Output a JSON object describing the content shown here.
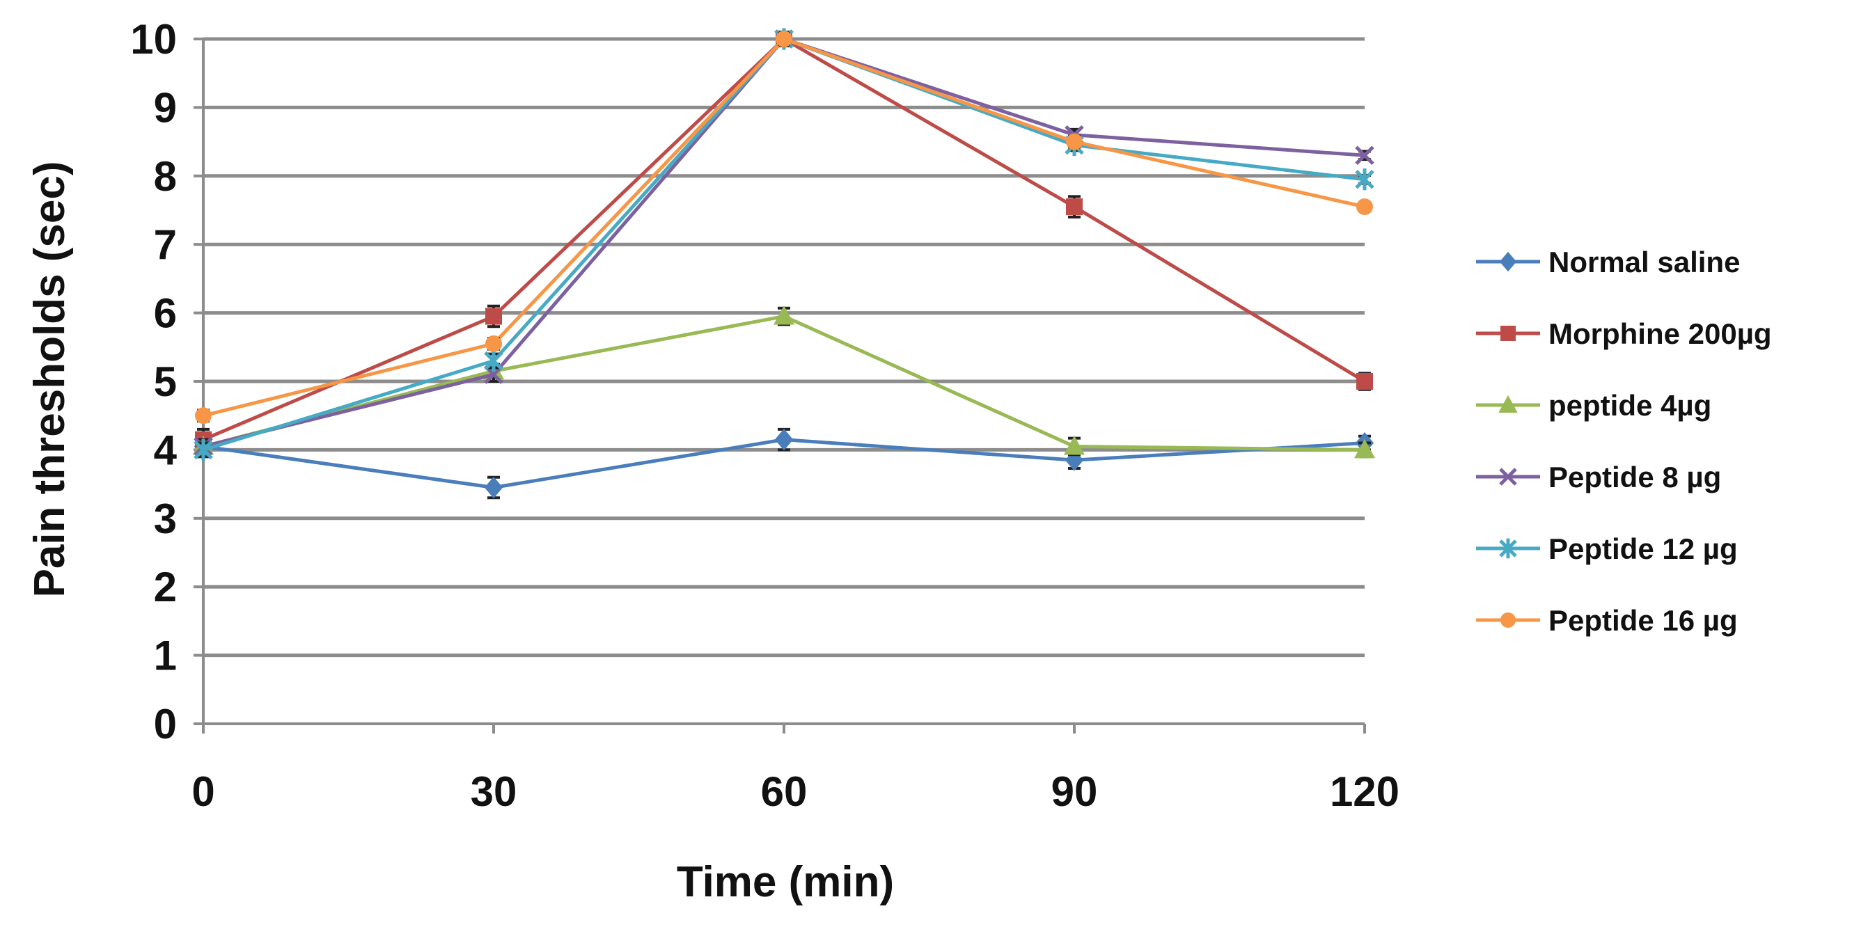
{
  "chart_data": {
    "type": "line",
    "title": "",
    "xlabel": "Time (min)",
    "ylabel": "Pain thresholds (sec)",
    "x": [
      0,
      30,
      60,
      90,
      120
    ],
    "x_tick_labels": [
      "0",
      "30",
      "60",
      "90",
      "120"
    ],
    "y_tick_labels": [
      "0",
      "1",
      "2",
      "3",
      "4",
      "5",
      "6",
      "7",
      "8",
      "9",
      "10"
    ],
    "ylim": [
      0,
      10
    ],
    "grid": true,
    "legend_position": "right",
    "error_bars": true,
    "series": [
      {
        "name": "Normal saline",
        "color": "#4a7ebb",
        "marker": "diamond",
        "values": [
          4.05,
          3.45,
          4.15,
          3.85,
          4.1
        ],
        "errors": [
          0.15,
          0.15,
          0.15,
          0.12,
          0.1
        ]
      },
      {
        "name": "Morphine 200µg",
        "color": "#be4b48",
        "marker": "square",
        "values": [
          4.15,
          5.95,
          10.0,
          7.55,
          5.0
        ],
        "errors": [
          0.15,
          0.15,
          0.1,
          0.15,
          0.12
        ]
      },
      {
        "name": "peptide 4µg",
        "color": "#98b954",
        "marker": "triangle",
        "values": [
          4.05,
          5.15,
          5.95,
          4.05,
          4.0
        ],
        "errors": [
          0.1,
          0.1,
          0.12,
          0.12,
          0.1
        ]
      },
      {
        "name": "Peptide 8 µg",
        "color": "#7d60a0",
        "marker": "x",
        "values": [
          4.05,
          5.1,
          10.0,
          8.6,
          8.3
        ],
        "errors": [
          0.1,
          0.1,
          0.1,
          0.08,
          0.06
        ]
      },
      {
        "name": "Peptide 12 µg",
        "color": "#46aac5",
        "marker": "star",
        "values": [
          4.0,
          5.3,
          10.0,
          8.45,
          7.95
        ],
        "errors": [
          0.1,
          0.1,
          0.1,
          0.08,
          0.06
        ]
      },
      {
        "name": "Peptide 16 µg",
        "color": "#f79646",
        "marker": "circle",
        "values": [
          4.5,
          5.55,
          10.0,
          8.5,
          7.55
        ],
        "errors": [
          0.08,
          0.08,
          0.08,
          0.08,
          0.06
        ]
      }
    ]
  }
}
